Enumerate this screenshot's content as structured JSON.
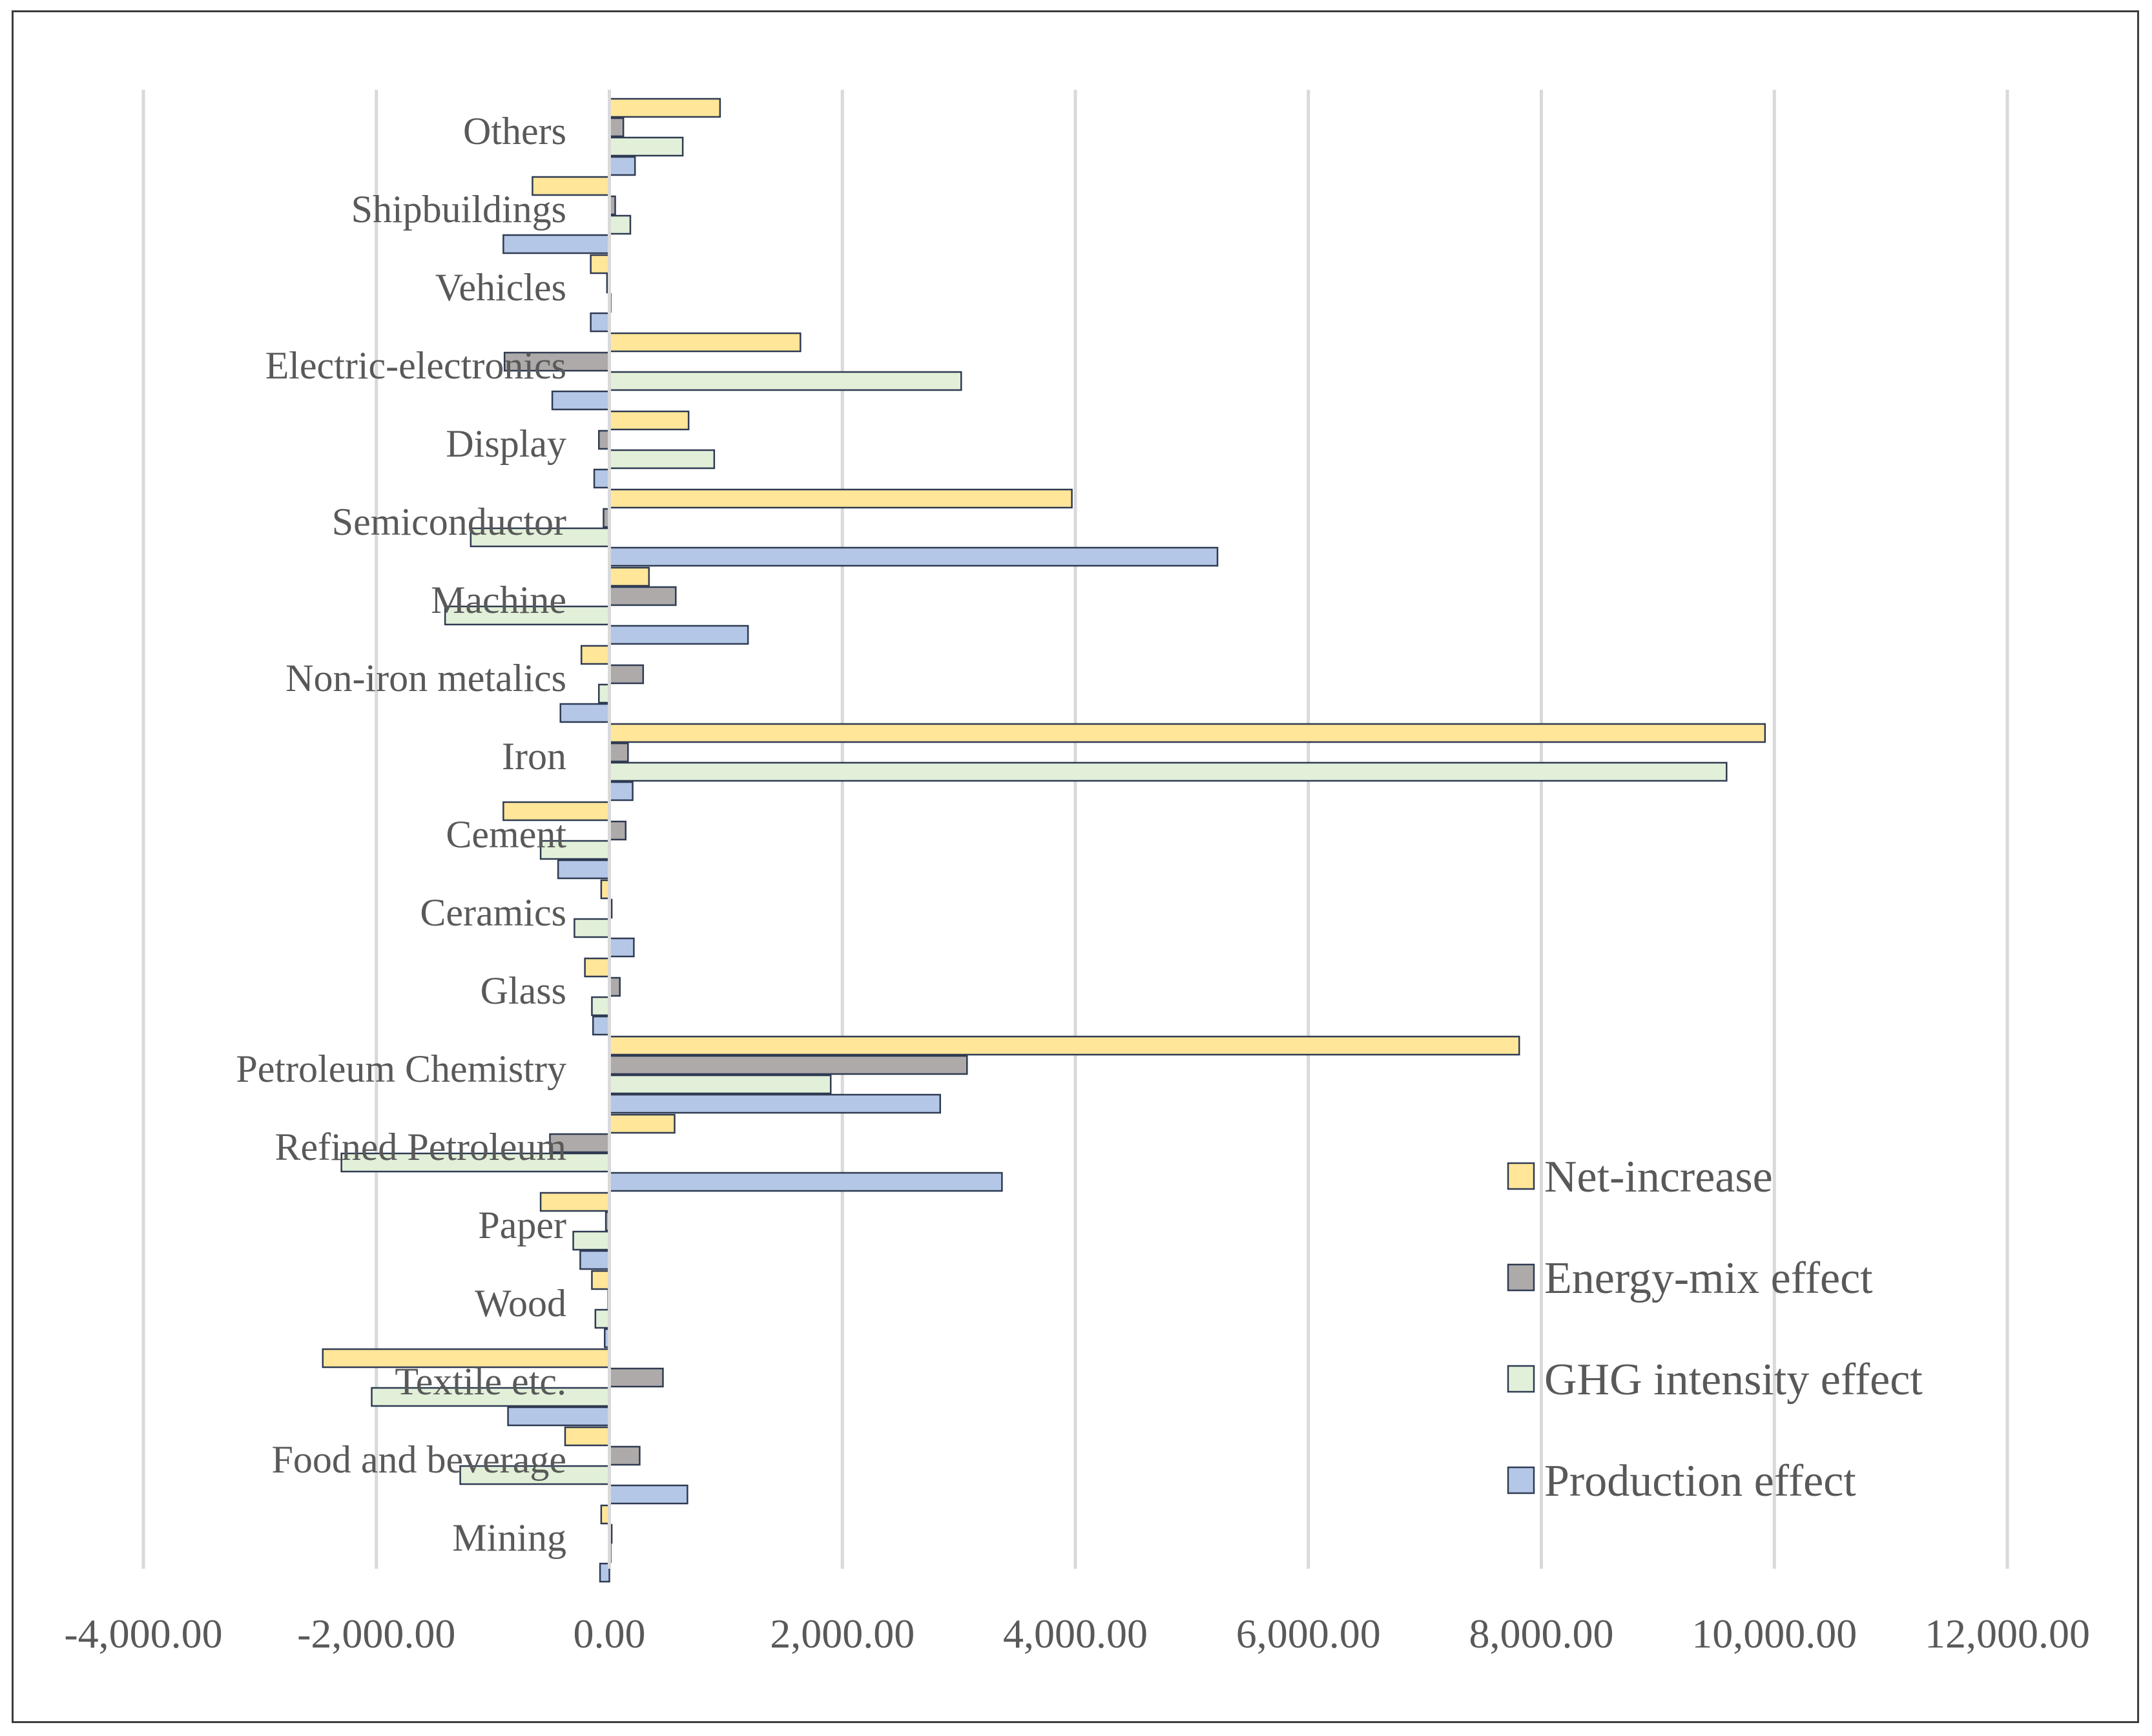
{
  "chart_data": {
    "type": "bar",
    "orientation": "horizontal",
    "title": "",
    "xlabel": "",
    "ylabel": "",
    "xlim": [
      -4000,
      12000
    ],
    "x_ticks": [
      -4000,
      -2000,
      0,
      2000,
      4000,
      6000,
      8000,
      10000,
      12000
    ],
    "x_tick_labels": [
      "-4,000.00",
      "-2,000.00",
      "0.00",
      "2,000.00",
      "4,000.00",
      "6,000.00",
      "8,000.00",
      "10,000.00",
      "12,000.00"
    ],
    "grid": "vertical",
    "legend_position": "right",
    "categories": [
      "Others",
      "Shipbuildings",
      "Vehicles",
      "Electric-electronics",
      "Display",
      "Semiconductor",
      "Machine",
      "Non-iron metalics",
      "Iron",
      "Cement",
      "Ceramics",
      "Glass",
      "Petroleum Chemistry",
      "Refined Petroleum",
      "Paper",
      "Wood",
      "Textile etc.",
      "Food and beverage",
      "Mining"
    ],
    "category_labels_display": [
      "Others",
      "Shipbuildings",
      "Vehicles",
      "Electric-electronics",
      "Display",
      "Semiconductor",
      "Machine",
      "Non-iron metalics",
      "Iron",
      "Cement",
      "Ceramics",
      "Glass",
      "Petroleum Chemistry",
      "Refined Petroleum",
      "Paper",
      "Wood",
      "Textile etc.",
      "Food and beverage",
      "Mining"
    ],
    "series": [
      {
        "name": "Net-increase",
        "color": "#FFE699",
        "values": [
          950,
          -660,
          -160,
          1640,
          680,
          3970,
          340,
          -240,
          9920,
          -910,
          -70,
          -210,
          7810,
          560,
          -590,
          -150,
          -2460,
          -380,
          -70
        ]
      },
      {
        "name": "Energy-mix effect",
        "color": "#AEAAAA",
        "values": [
          120,
          50,
          -20,
          -900,
          -90,
          -50,
          570,
          290,
          160,
          140,
          20,
          90,
          3070,
          -510,
          -30,
          -10,
          460,
          260,
          20
        ]
      },
      {
        "name": "GHG intensity effect",
        "color": "#E2F0D9",
        "values": [
          630,
          180,
          10,
          3020,
          900,
          -1190,
          -1410,
          -90,
          9590,
          -590,
          -300,
          -150,
          1900,
          -2300,
          -310,
          -120,
          -2040,
          -1280,
          0
        ]
      },
      {
        "name": "Production effect",
        "color": "#B4C7E7",
        "values": [
          220,
          -910,
          -160,
          -490,
          -130,
          5220,
          1190,
          -420,
          200,
          -440,
          210,
          -140,
          2840,
          3370,
          -250,
          -40,
          -870,
          670,
          -80
        ]
      }
    ],
    "legend_order": [
      "Net-increase",
      "Energy-mix effect",
      "GHG intensity effect",
      "Production effect"
    ]
  }
}
